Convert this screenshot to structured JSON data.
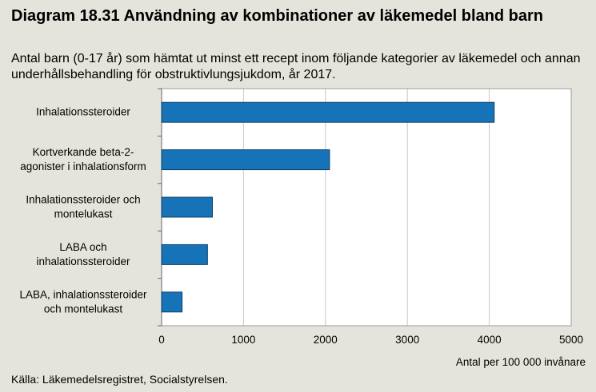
{
  "title": "Diagram 18.31 Användning av kombinationer av läkemedel bland barn",
  "subtitle": "Antal barn (0-17 år) som hämtat ut minst ett recept inom följande kategorier av läkemedel och annan underhållsbehandling för obstruktivlungsjukdom, år 2017.",
  "source": "Källa: Läkemedelsregistret, Socialstyrelsen.",
  "chart_data": {
    "type": "bar",
    "orientation": "horizontal",
    "categories": [
      [
        "Inhalationssteroider"
      ],
      [
        "Kortverkande beta-2-",
        "agonister i inhalationsform"
      ],
      [
        "Inhalationssteroider och",
        "montelukast"
      ],
      [
        "LABA och",
        "inhalationssteroider"
      ],
      [
        "LABA, inhalationssteroider",
        "och montelukast"
      ]
    ],
    "values": [
      4060,
      2050,
      620,
      560,
      250
    ],
    "xlim": [
      0,
      5000
    ],
    "xticks": [
      0,
      1000,
      2000,
      3000,
      4000,
      5000
    ],
    "xlabel": "Antal per 100 000 invånare",
    "ylabel": "",
    "grid": true,
    "colors": {
      "bar": "#1673b8",
      "bar_border": "#0d3f66",
      "plot_bg": "#ffffff",
      "grid": "#c8c8c8"
    }
  }
}
